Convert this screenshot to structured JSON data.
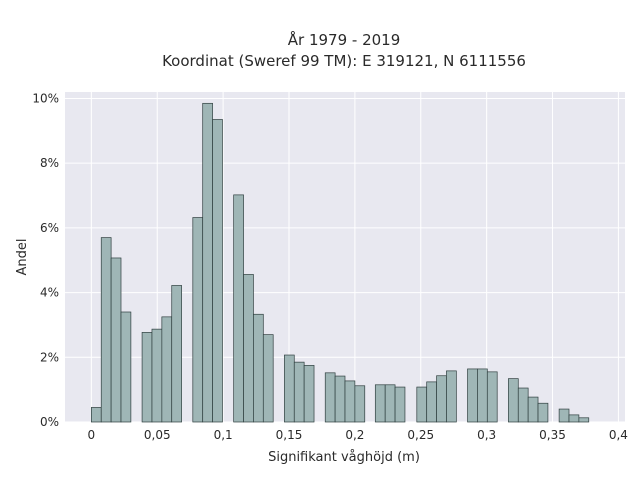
{
  "chart_data": {
    "type": "bar",
    "title_lines": [
      "År 1979 - 2019",
      "Koordinat (Sweref 99 TM): E 319121, N 6111556"
    ],
    "xlabel": "Signifikant våghöjd (m)",
    "ylabel": "Andel",
    "xlim": [
      -0.02,
      0.405
    ],
    "ylim": [
      0,
      10.2
    ],
    "x_ticks": [
      {
        "value": 0,
        "label": "0"
      },
      {
        "value": 0.05,
        "label": "0,05"
      },
      {
        "value": 0.1,
        "label": "0,1"
      },
      {
        "value": 0.15,
        "label": "0,15"
      },
      {
        "value": 0.2,
        "label": "0,2"
      },
      {
        "value": 0.25,
        "label": "0,25"
      },
      {
        "value": 0.3,
        "label": "0,3"
      },
      {
        "value": 0.35,
        "label": "0,35"
      },
      {
        "value": 0.4,
        "label": "0,4"
      }
    ],
    "y_ticks": [
      {
        "value": 0,
        "label": "0%"
      },
      {
        "value": 2,
        "label": "2%"
      },
      {
        "value": 4,
        "label": "4%"
      },
      {
        "value": 6,
        "label": "6%"
      },
      {
        "value": 8,
        "label": "8%"
      },
      {
        "value": 10,
        "label": "10%"
      }
    ],
    "bin_width": 0.0075,
    "bins": [
      {
        "x0": 0.0,
        "value": 0.45
      },
      {
        "x0": 0.0075,
        "value": 5.7
      },
      {
        "x0": 0.015,
        "value": 5.07
      },
      {
        "x0": 0.0225,
        "value": 3.4
      },
      {
        "x0": 0.0385,
        "value": 2.77
      },
      {
        "x0": 0.046,
        "value": 2.87
      },
      {
        "x0": 0.0535,
        "value": 3.25
      },
      {
        "x0": 0.061,
        "value": 4.22
      },
      {
        "x0": 0.077,
        "value": 6.32
      },
      {
        "x0": 0.0845,
        "value": 9.85
      },
      {
        "x0": 0.092,
        "value": 9.35
      },
      {
        "x0": 0.108,
        "value": 7.02
      },
      {
        "x0": 0.1155,
        "value": 4.56
      },
      {
        "x0": 0.123,
        "value": 3.33
      },
      {
        "x0": 0.1305,
        "value": 2.7
      },
      {
        "x0": 0.1465,
        "value": 2.07
      },
      {
        "x0": 0.154,
        "value": 1.85
      },
      {
        "x0": 0.1615,
        "value": 1.75
      },
      {
        "x0": 0.1775,
        "value": 1.52
      },
      {
        "x0": 0.185,
        "value": 1.42
      },
      {
        "x0": 0.1925,
        "value": 1.27
      },
      {
        "x0": 0.2,
        "value": 1.12
      },
      {
        "x0": 0.2155,
        "value": 1.15
      },
      {
        "x0": 0.223,
        "value": 1.15
      },
      {
        "x0": 0.2305,
        "value": 1.08
      },
      {
        "x0": 0.247,
        "value": 1.08
      },
      {
        "x0": 0.2545,
        "value": 1.24
      },
      {
        "x0": 0.262,
        "value": 1.43
      },
      {
        "x0": 0.2695,
        "value": 1.58
      },
      {
        "x0": 0.2855,
        "value": 1.64
      },
      {
        "x0": 0.293,
        "value": 1.64
      },
      {
        "x0": 0.3005,
        "value": 1.55
      },
      {
        "x0": 0.3165,
        "value": 1.34
      },
      {
        "x0": 0.324,
        "value": 1.05
      },
      {
        "x0": 0.3315,
        "value": 0.77
      },
      {
        "x0": 0.339,
        "value": 0.58
      },
      {
        "x0": 0.355,
        "value": 0.4
      },
      {
        "x0": 0.3625,
        "value": 0.22
      },
      {
        "x0": 0.37,
        "value": 0.13
      }
    ],
    "colors": {
      "bar_fill": "#9fb6b6",
      "bar_stroke": "#2f3f3f",
      "plot_bg": "#e8e8f0",
      "grid": "#ffffff"
    },
    "grid": true
  }
}
